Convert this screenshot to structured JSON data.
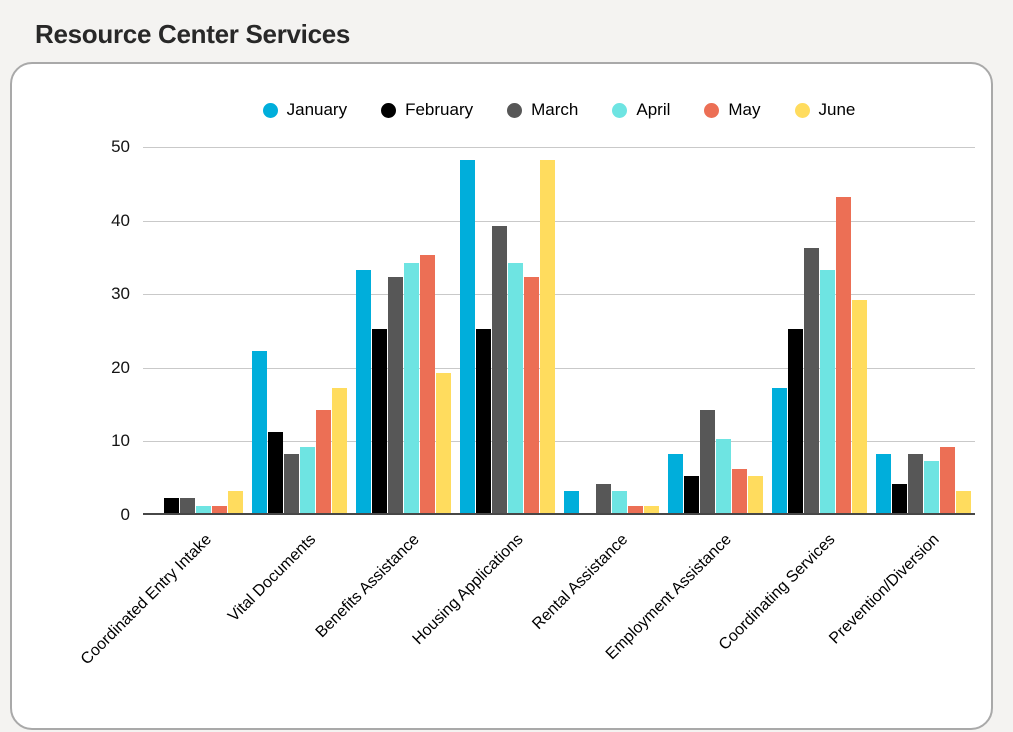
{
  "page": {
    "title": "Resource Center Services"
  },
  "chart_data": {
    "type": "bar",
    "title": "Resource Center Services",
    "categories": [
      "Coordinated Entry Intake",
      "Vital Documents",
      "Benefits Assistance",
      "Housing Applications",
      "Rental Assistance",
      "Employment Assistance",
      "Coordinating Services",
      "Prevention/Diversion"
    ],
    "series": [
      {
        "name": "January",
        "color": "#00AEDB",
        "values": [
          0,
          22,
          33,
          48,
          3,
          8,
          17,
          8
        ]
      },
      {
        "name": "February",
        "color": "#000000",
        "values": [
          2,
          11,
          25,
          25,
          0,
          5,
          25,
          4
        ]
      },
      {
        "name": "March",
        "color": "#575757",
        "values": [
          2,
          8,
          32,
          39,
          4,
          14,
          36,
          8
        ]
      },
      {
        "name": "April",
        "color": "#6EE4E2",
        "values": [
          1,
          9,
          34,
          34,
          3,
          10,
          33,
          7
        ]
      },
      {
        "name": "May",
        "color": "#EC6F55",
        "values": [
          1,
          14,
          35,
          32,
          1,
          6,
          43,
          9
        ]
      },
      {
        "name": "June",
        "color": "#FFDC5E",
        "values": [
          3,
          17,
          19,
          48,
          1,
          5,
          29,
          3
        ]
      }
    ],
    "ylim": [
      0,
      50
    ],
    "y_ticks": [
      0,
      10,
      20,
      30,
      40,
      50
    ],
    "grid": "horizontal",
    "legend_position": "top",
    "colors": {
      "gridline": "#c9c9c9",
      "axis_line": "#474747",
      "card_border": "#a9a9a9",
      "page_background": "#f4f3f1",
      "title_text": "#282828"
    }
  }
}
